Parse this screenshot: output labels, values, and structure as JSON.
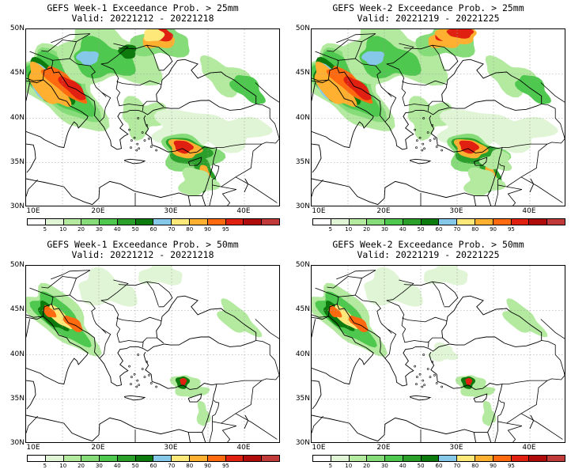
{
  "panels": [
    {
      "title": "GEFS Week-1 Exceedance Prob. > 25mm",
      "valid": "Valid: 20221212 - 20221218",
      "threshold_mm": 25,
      "variant": "w1"
    },
    {
      "title": "GEFS Week-2 Exceedance Prob. > 25mm",
      "valid": "Valid: 20221219 - 20221225",
      "threshold_mm": 25,
      "variant": "w2"
    },
    {
      "title": "GEFS Week-1 Exceedance Prob. > 50mm",
      "valid": "Valid: 20221212 - 20221218",
      "threshold_mm": 50,
      "variant": "w1"
    },
    {
      "title": "GEFS Week-2 Exceedance Prob. > 50mm",
      "valid": "Valid: 20221219 - 20221225",
      "threshold_mm": 50,
      "variant": "w2"
    }
  ],
  "map": {
    "lon_range": [
      10,
      45
    ],
    "lat_range": [
      30,
      50
    ],
    "lat_ticks": [
      "50N",
      "45N",
      "40N",
      "35N",
      "30N"
    ],
    "lon_ticks": [
      "10E",
      "20E",
      "30E",
      "40E"
    ]
  },
  "colorbar": {
    "labels": [
      "5",
      "10",
      "20",
      "30",
      "40",
      "50",
      "60",
      "70",
      "80",
      "90",
      "95"
    ],
    "colors": [
      "#ffffff",
      "#e0f5d5",
      "#b4eaa0",
      "#86dc78",
      "#4ec84e",
      "#2aa02a",
      "#0d7a0d",
      "#86c8e8",
      "#ffe87a",
      "#ffb030",
      "#ff6a10",
      "#e02010",
      "#b00c0c",
      "#c03a3a"
    ]
  }
}
